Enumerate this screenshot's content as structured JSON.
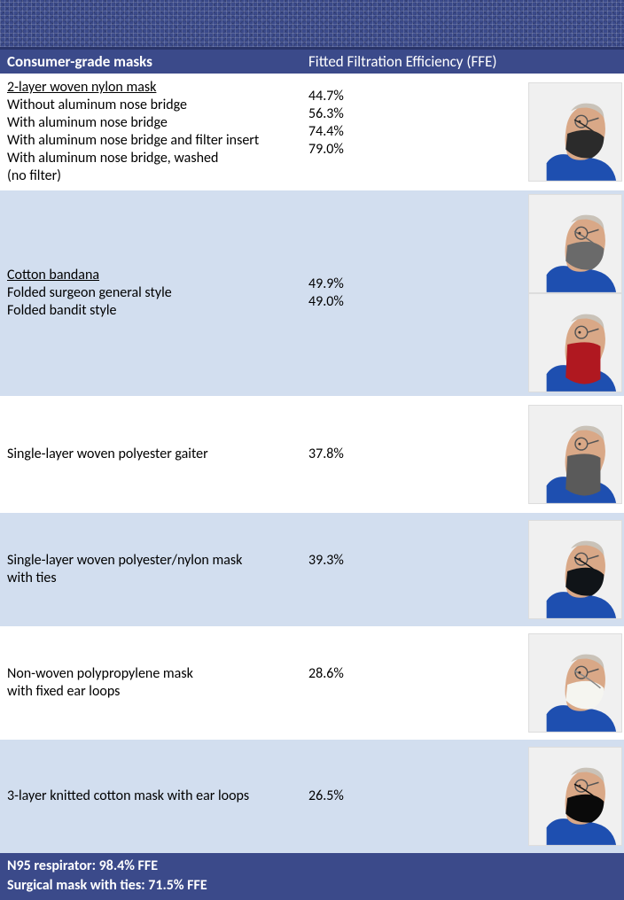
{
  "header": {
    "left": "Consumer-grade masks",
    "right": "Fitted Filtration Efficiency (FFE)"
  },
  "rows": [
    {
      "alt": false,
      "title": "2-layer woven nylon mask",
      "lines": [
        "Without aluminum nose bridge",
        "With aluminum nose bridge",
        "With aluminum nose bridge and filter insert",
        "With aluminum nose bridge, washed",
        "(no filter)"
      ],
      "values": [
        "44.7%",
        "56.3%",
        "74.4%",
        "79.0%",
        ""
      ],
      "images": [
        {
          "mask_color": "#2b2b2b",
          "bandana": false,
          "shirt": "#1e4fb0"
        }
      ],
      "min_height": 132
    },
    {
      "alt": true,
      "title": "Cotton bandana",
      "lines": [
        "Folded surgeon general style",
        "Folded bandit style"
      ],
      "values": [
        "49.9%",
        "49.0%"
      ],
      "images": [
        {
          "mask_color": "#6a6a6a",
          "bandana": false,
          "shirt": "#1e4fb0"
        },
        {
          "mask_color": "#b01820",
          "bandana": true,
          "shirt": "#1e4fb0"
        }
      ],
      "min_height": 232
    },
    {
      "alt": false,
      "title": null,
      "lines": [
        "Single-layer woven polyester gaiter"
      ],
      "values": [
        "37.8%"
      ],
      "images": [
        {
          "mask_color": "#5a5a5a",
          "bandana": true,
          "shirt": "#1e4fb0"
        }
      ],
      "min_height": 132
    },
    {
      "alt": true,
      "title": null,
      "lines": [
        "Single-layer woven polyester/nylon mask",
        "with ties"
      ],
      "values": [
        "39.3%",
        ""
      ],
      "images": [
        {
          "mask_color": "#101418",
          "bandana": false,
          "shirt": "#1e4fb0"
        }
      ],
      "min_height": 128
    },
    {
      "alt": false,
      "title": null,
      "lines": [
        "Non-woven polypropylene mask",
        "with fixed ear loops"
      ],
      "values": [
        "28.6%",
        ""
      ],
      "images": [
        {
          "mask_color": "#f5f5f0",
          "bandana": false,
          "shirt": "#1e4fb0"
        }
      ],
      "min_height": 128
    },
    {
      "alt": true,
      "title": null,
      "lines": [
        "3-layer knitted cotton mask with ear loops"
      ],
      "values": [
        "26.5%"
      ],
      "images": [
        {
          "mask_color": "#0a0a0a",
          "bandana": false,
          "shirt": "#1e4fb0"
        }
      ],
      "min_height": 128
    }
  ],
  "footer": {
    "line1": "N95 respirator: 98.4% FFE",
    "line2": "Surgical mask with ties: 71.5% FFE"
  },
  "colors": {
    "header_bg": "#3b4a8a",
    "alt_row_bg": "#d2deef",
    "skin": "#d9a887",
    "hair": "#c9c2b8"
  }
}
